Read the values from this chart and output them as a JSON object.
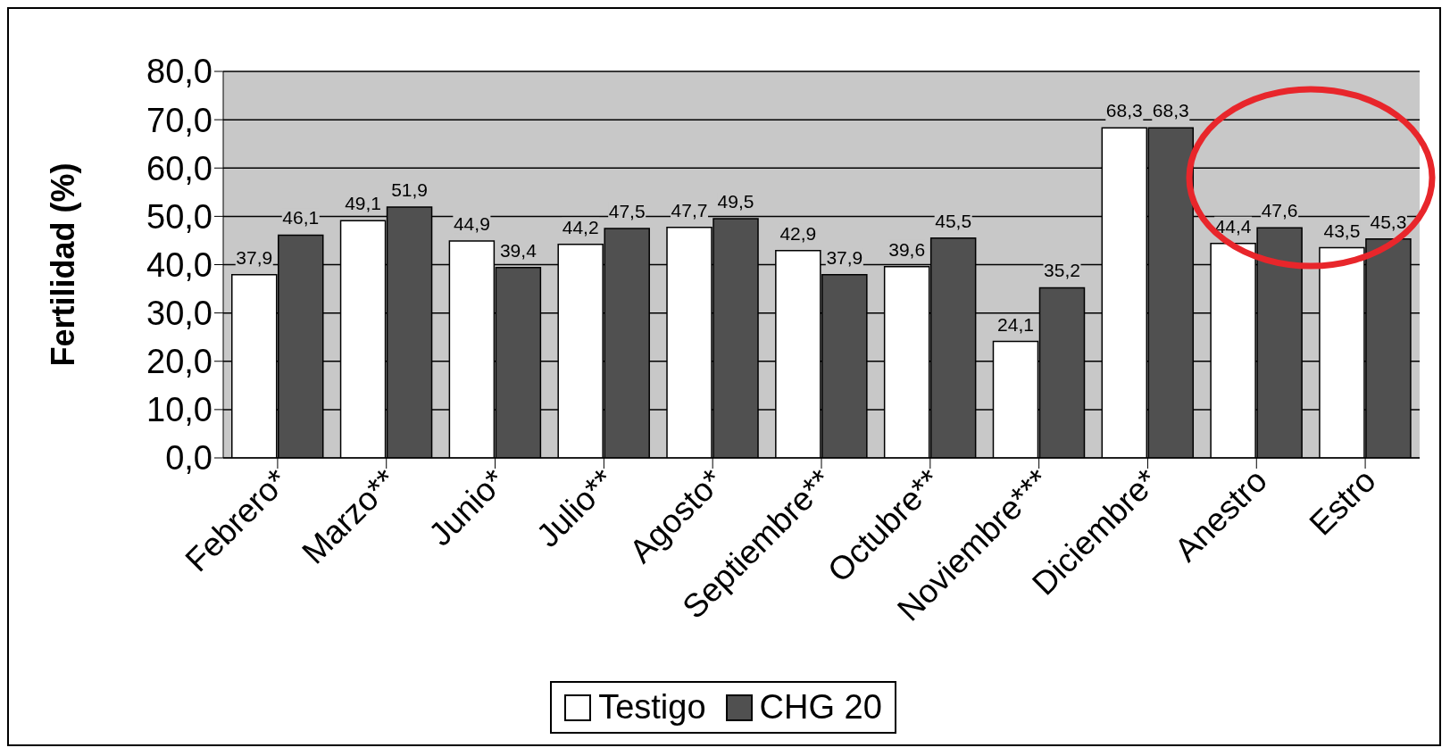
{
  "chart_data": {
    "type": "bar",
    "ylabel": "Fertilidad (%)",
    "categories": [
      "Febrero*",
      "Marzo**",
      "Junio*",
      "Julio**",
      "Agosto*",
      "Septiembre**",
      "Octubre**",
      "Noviembre***",
      "Diciembre*",
      "Anestro",
      "Estro"
    ],
    "series": [
      {
        "name": "Testigo",
        "color": "#ffffff",
        "values": [
          37.9,
          49.1,
          44.9,
          44.2,
          47.7,
          42.9,
          39.6,
          24.1,
          68.3,
          44.4,
          43.5
        ],
        "value_labels": [
          "37,9",
          "49,1",
          "44,9",
          "44,2",
          "47,7",
          "42,9",
          "39,6",
          "24,1",
          "68,3",
          "44,4",
          "43,5"
        ]
      },
      {
        "name": "CHG 20",
        "color": "#505050",
        "values": [
          46.1,
          51.9,
          39.4,
          47.5,
          49.5,
          37.9,
          45.5,
          35.2,
          68.3,
          47.6,
          45.3
        ],
        "value_labels": [
          "46,1",
          "51,9",
          "39,4",
          "47,5",
          "49,5",
          "37,9",
          "45,5",
          "35,2",
          "68,3",
          "47,6",
          "45,3"
        ]
      }
    ],
    "ylim": [
      0,
      80
    ],
    "yticks": [
      {
        "value": 0,
        "label": "0,0"
      },
      {
        "value": 10,
        "label": "10,0"
      },
      {
        "value": 20,
        "label": "20,0"
      },
      {
        "value": 30,
        "label": "30,0"
      },
      {
        "value": 40,
        "label": "40,0"
      },
      {
        "value": 50,
        "label": "50,0"
      },
      {
        "value": 60,
        "label": "60,0"
      },
      {
        "value": 70,
        "label": "70,0"
      },
      {
        "value": 80,
        "label": "80,0"
      }
    ],
    "grid": "y",
    "legend": "bottom"
  }
}
